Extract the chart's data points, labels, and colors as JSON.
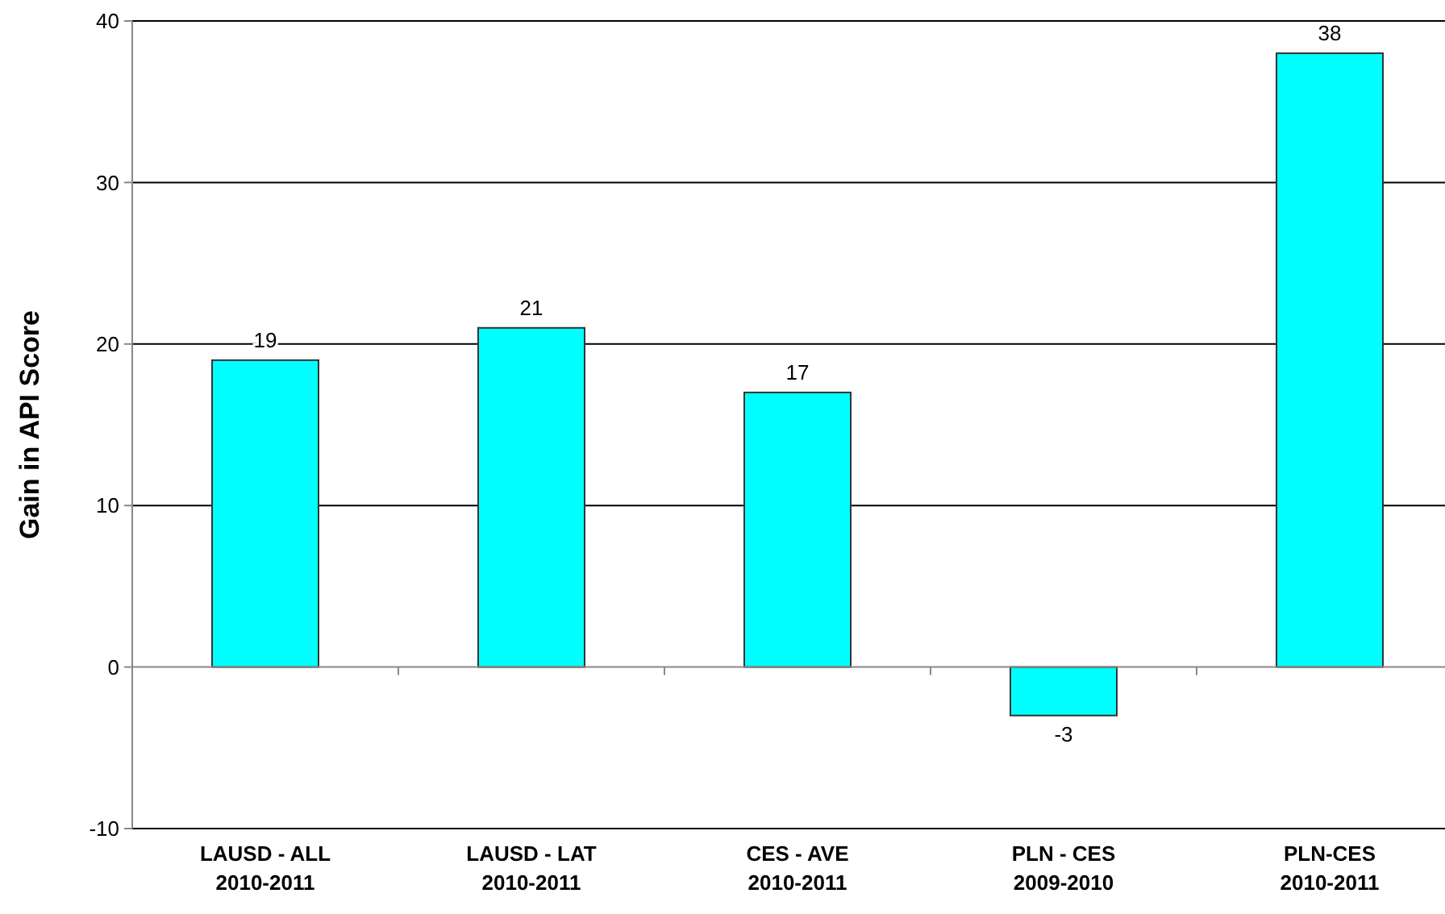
{
  "chart_data": {
    "type": "bar",
    "ylabel": "Gain in API Score",
    "categories": [
      "LAUSD - ALL\n2010-2011",
      "LAUSD - LAT\n2010-2011",
      "CES - AVE\n2010-2011",
      "PLN - CES\n2009-2010",
      "PLN-CES\n2010-2011"
    ],
    "values": [
      19,
      21,
      17,
      -3,
      38
    ],
    "color": "#00ffff",
    "data_labels": true,
    "ylim": [
      -10,
      40
    ],
    "yticks": [
      -10,
      0,
      10,
      20,
      30,
      40
    ],
    "grid": "y"
  }
}
